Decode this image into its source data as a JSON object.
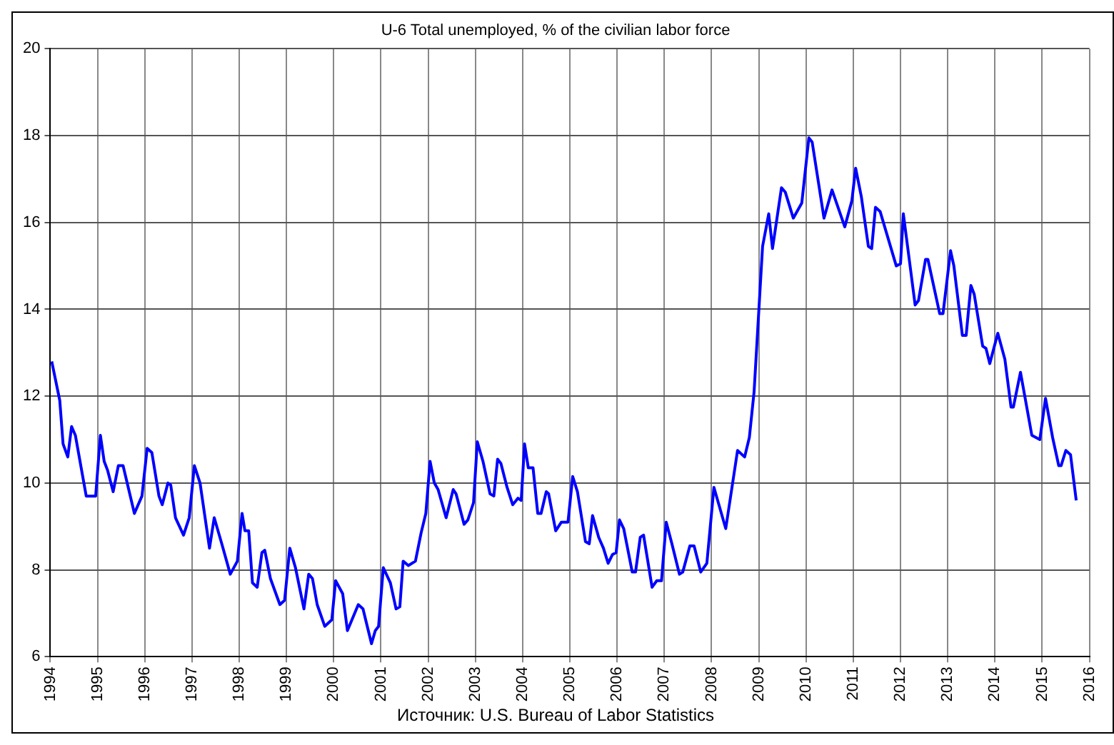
{
  "chart_data": {
    "type": "line",
    "title": "U-6 Total unemployed, % of the civilian labor force",
    "annotations": [
      "Источник: U.S. Bureau of Labor Statistics"
    ],
    "xlim": [
      1994,
      2016
    ],
    "xticks": [
      1994,
      1995,
      1996,
      1997,
      1998,
      1999,
      2000,
      2001,
      2002,
      2003,
      2004,
      2005,
      2006,
      2007,
      2008,
      2009,
      2010,
      2011,
      2012,
      2013,
      2014,
      2015,
      2016
    ],
    "ylim": [
      6,
      20
    ],
    "yticks": [
      6,
      8,
      10,
      12,
      14,
      16,
      18,
      20
    ],
    "grid": true,
    "legend": false,
    "marker": "none",
    "line_style": "solid",
    "series": [
      {
        "color": "#0000ff",
        "x": [
          1994.03,
          1994.2,
          1994.27,
          1994.37,
          1994.45,
          1994.53,
          1994.76,
          1994.96,
          1995.06,
          1995.14,
          1995.21,
          1995.33,
          1995.44,
          1995.54,
          1995.78,
          1995.94,
          1996.05,
          1996.15,
          1996.3,
          1996.37,
          1996.49,
          1996.55,
          1996.65,
          1996.82,
          1996.94,
          1997.05,
          1997.17,
          1997.37,
          1997.47,
          1997.63,
          1997.81,
          1997.96,
          1998.06,
          1998.12,
          1998.2,
          1998.28,
          1998.38,
          1998.48,
          1998.54,
          1998.66,
          1998.86,
          1998.96,
          1999.07,
          1999.19,
          1999.37,
          1999.47,
          1999.55,
          1999.65,
          1999.81,
          1999.96,
          2000.04,
          2000.19,
          2000.29,
          2000.52,
          2000.62,
          2000.8,
          2000.88,
          2000.95,
          2001.05,
          2001.2,
          2001.32,
          2001.4,
          2001.47,
          2001.58,
          2001.73,
          2001.85,
          2001.95,
          2002.04,
          2002.13,
          2002.21,
          2002.38,
          2002.53,
          2002.59,
          2002.76,
          2002.84,
          2002.96,
          2003.04,
          2003.16,
          2003.31,
          2003.39,
          2003.47,
          2003.54,
          2003.67,
          2003.79,
          2003.9,
          2003.97,
          2004.04,
          2004.12,
          2004.22,
          2004.32,
          2004.39,
          2004.5,
          2004.55,
          2004.7,
          2004.82,
          2004.96,
          2005.06,
          2005.16,
          2005.33,
          2005.41,
          2005.48,
          2005.61,
          2005.71,
          2005.81,
          2005.9,
          2005.98,
          2006.05,
          2006.14,
          2006.32,
          2006.39,
          2006.49,
          2006.56,
          2006.74,
          2006.84,
          2006.94,
          2007.04,
          2007.16,
          2007.32,
          2007.39,
          2007.54,
          2007.63,
          2007.77,
          2007.9,
          2008.05,
          2008.3,
          2008.55,
          2008.7,
          2008.8,
          2008.9,
          2009.01,
          2009.08,
          2009.21,
          2009.29,
          2009.48,
          2009.56,
          2009.73,
          2009.91,
          2010.06,
          2010.13,
          2010.38,
          2010.55,
          2010.82,
          2010.97,
          2011.05,
          2011.17,
          2011.32,
          2011.39,
          2011.47,
          2011.57,
          2011.91,
          2012.0,
          2012.06,
          2012.31,
          2012.38,
          2012.53,
          2012.58,
          2012.83,
          2012.9,
          2013.06,
          2013.13,
          2013.31,
          2013.39,
          2013.49,
          2013.56,
          2013.74,
          2013.81,
          2013.89,
          2014.06,
          2014.21,
          2014.34,
          2014.39,
          2014.54,
          2014.78,
          2014.95,
          2015.07,
          2015.22,
          2015.35,
          2015.4,
          2015.5,
          2015.6,
          2015.72
        ],
        "values": [
          12.8,
          11.9,
          10.9,
          10.6,
          11.3,
          11.1,
          9.7,
          9.7,
          11.1,
          10.5,
          10.3,
          9.8,
          10.4,
          10.4,
          9.3,
          9.7,
          10.8,
          10.7,
          9.7,
          9.5,
          10.0,
          9.95,
          9.2,
          8.8,
          9.2,
          10.4,
          10.0,
          8.5,
          9.2,
          8.6,
          7.9,
          8.2,
          9.3,
          8.9,
          8.9,
          7.7,
          7.6,
          8.4,
          8.45,
          7.8,
          7.2,
          7.3,
          8.5,
          8.05,
          7.1,
          7.9,
          7.8,
          7.2,
          6.7,
          6.85,
          7.75,
          7.45,
          6.6,
          7.2,
          7.1,
          6.3,
          6.6,
          6.7,
          8.05,
          7.7,
          7.1,
          7.15,
          8.2,
          8.1,
          8.2,
          8.85,
          9.3,
          10.5,
          10.0,
          9.85,
          9.2,
          9.85,
          9.75,
          9.05,
          9.15,
          9.55,
          10.95,
          10.5,
          9.75,
          9.7,
          10.55,
          10.45,
          9.9,
          9.5,
          9.65,
          9.6,
          10.9,
          10.35,
          10.35,
          9.3,
          9.3,
          9.8,
          9.75,
          8.9,
          9.1,
          9.1,
          10.15,
          9.8,
          8.65,
          8.6,
          9.25,
          8.75,
          8.5,
          8.15,
          8.35,
          8.4,
          9.15,
          8.95,
          7.95,
          7.95,
          8.75,
          8.8,
          7.6,
          7.75,
          7.75,
          9.1,
          8.6,
          7.9,
          7.95,
          8.55,
          8.55,
          7.95,
          8.15,
          9.9,
          8.95,
          10.75,
          10.6,
          11.05,
          12.1,
          14.15,
          15.45,
          16.2,
          15.4,
          16.8,
          16.7,
          16.1,
          16.45,
          17.95,
          17.85,
          16.1,
          16.75,
          15.9,
          16.5,
          17.25,
          16.6,
          15.45,
          15.4,
          16.35,
          16.25,
          15.0,
          15.05,
          16.2,
          14.1,
          14.2,
          15.15,
          15.15,
          13.9,
          13.9,
          15.35,
          15.0,
          13.4,
          13.4,
          14.55,
          14.35,
          13.15,
          13.1,
          12.75,
          13.45,
          12.85,
          11.75,
          11.75,
          12.55,
          11.1,
          11.0,
          11.95,
          11.05,
          10.4,
          10.4,
          10.75,
          10.65,
          9.6
        ]
      }
    ]
  }
}
